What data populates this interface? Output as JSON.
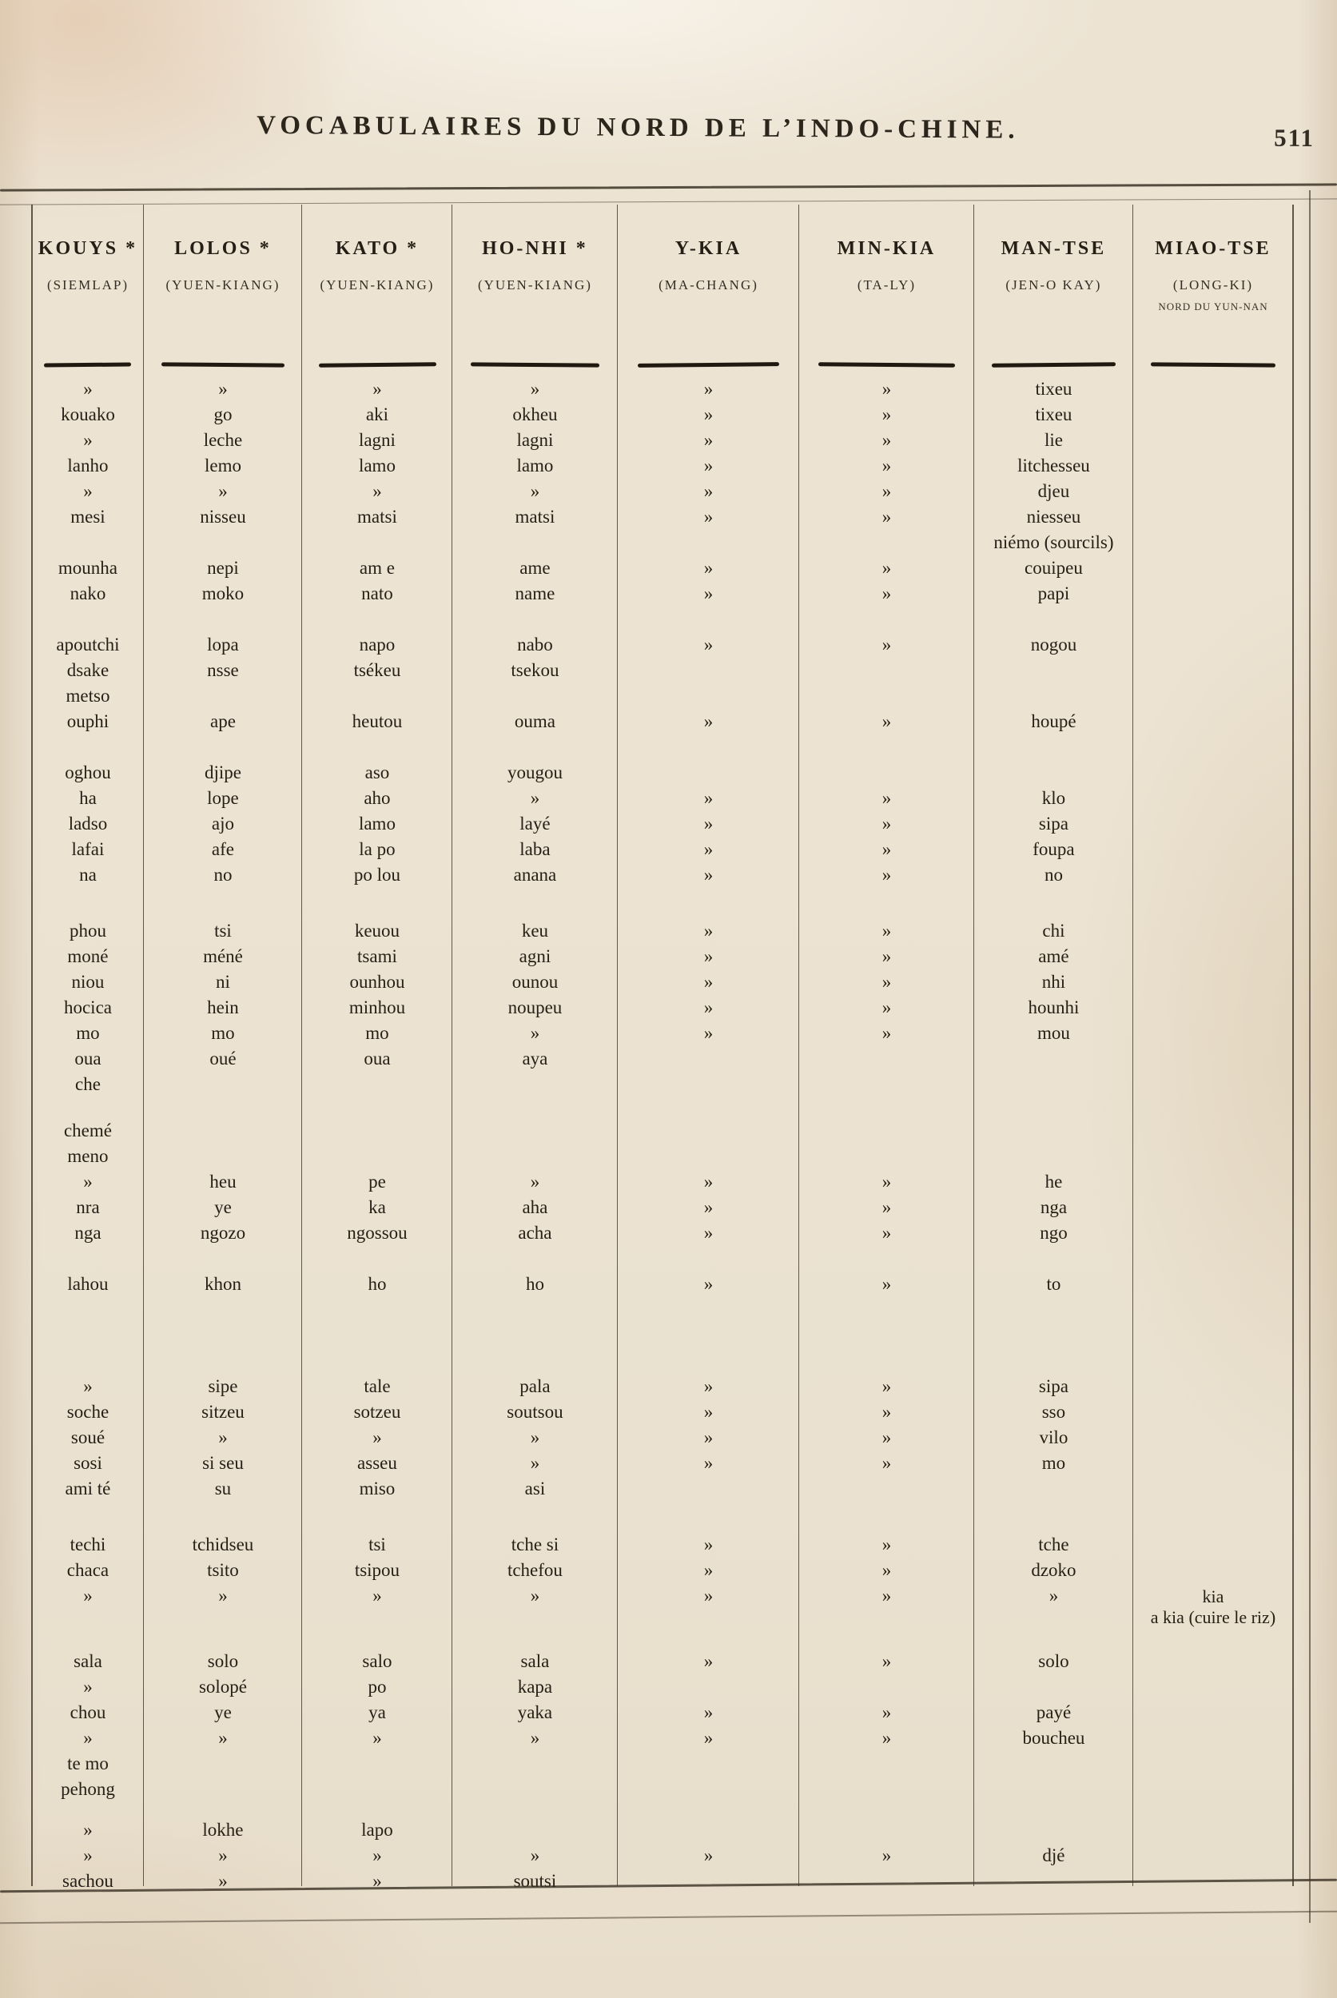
{
  "page": {
    "title": "VOCABULAIRES DU NORD DE L’INDO-CHINE.",
    "page_number": "511"
  },
  "table": {
    "columns": [
      {
        "name": "KOUYS *",
        "location": "(SIEMLAP)",
        "note": ""
      },
      {
        "name": "LOLOS *",
        "location": "(YUEN-KIANG)",
        "note": ""
      },
      {
        "name": "KATO *",
        "location": "(YUEN-KIANG)",
        "note": ""
      },
      {
        "name": "HO-NHI *",
        "location": "(YUEN-KIANG)",
        "note": ""
      },
      {
        "name": "Y-KIA",
        "location": "(MA-CHANG)",
        "note": ""
      },
      {
        "name": "MIN-KIA",
        "location": "(TA-LY)",
        "note": ""
      },
      {
        "name": "MAN-TSE",
        "location": "(JEN-O KAY)",
        "note": ""
      },
      {
        "name": "MIAO-TSE",
        "location": "(LONG-KI)",
        "note": "NORD DU YUN-NAN"
      }
    ],
    "rows": [
      [
        "»",
        "»",
        "»",
        "»",
        "»",
        "»",
        "tixeu",
        ""
      ],
      [
        "kouako",
        "go",
        "aki",
        "okheu",
        "»",
        "»",
        "tixeu",
        ""
      ],
      [
        "»",
        "leche",
        "lagni",
        "lagni",
        "»",
        "»",
        "lie",
        ""
      ],
      [
        "lanho",
        "lemo",
        "lamo",
        "lamo",
        "»",
        "»",
        "litchesseu",
        ""
      ],
      [
        "»",
        "»",
        "»",
        "»",
        "»",
        "»",
        "djeu",
        ""
      ],
      [
        "mesi",
        "nisseu",
        "matsi",
        "matsi",
        "»",
        "»",
        "niesseu",
        ""
      ],
      [
        "",
        "",
        "",
        "",
        "",
        "",
        "niémo (sourcils)",
        ""
      ],
      [
        "mounha",
        "nepi",
        "am e",
        "ame",
        "»",
        "»",
        "couipeu",
        ""
      ],
      [
        "nako",
        "moko",
        "nato",
        "name",
        "»",
        "»",
        "papi",
        ""
      ],
      {
        "gap": 1
      },
      [
        "apoutchi",
        "lopa",
        "napo",
        "nabo",
        "»",
        "»",
        "nogou",
        ""
      ],
      [
        "dsake",
        "nsse",
        "tsékeu",
        "tsekou",
        "",
        "",
        "",
        ""
      ],
      [
        "metso",
        "",
        "",
        "",
        "",
        "",
        "",
        ""
      ],
      [
        "ouphi",
        "ape",
        "heutou",
        "ouma",
        "»",
        "»",
        "houpé",
        ""
      ],
      {
        "gap": 1
      },
      [
        "oghou",
        "djipe",
        "aso",
        "yougou",
        "",
        "",
        "",
        ""
      ],
      [
        "ha",
        "lope",
        "aho",
        "»",
        "»",
        "»",
        "klo",
        ""
      ],
      [
        "ladso",
        "ajo",
        "lamo",
        "layé",
        "»",
        "»",
        "sipa",
        ""
      ],
      [
        "lafai",
        "afe",
        "la po",
        "laba",
        "»",
        "»",
        "foupa",
        ""
      ],
      [
        "na",
        "no",
        "po lou",
        "anana",
        "»",
        "»",
        "no",
        ""
      ],
      {
        "gap": 1.2
      },
      [
        "phou",
        "tsi",
        "keuou",
        "keu",
        "»",
        "»",
        "chi",
        ""
      ],
      [
        "moné",
        "méné",
        "tsami",
        "agni",
        "»",
        "»",
        "amé",
        ""
      ],
      [
        "niou",
        "ni",
        "ounhou",
        "ounou",
        "»",
        "»",
        "nhi",
        ""
      ],
      [
        "hocica",
        "hein",
        "minhou",
        "noupeu",
        "»",
        "»",
        "hounhi",
        ""
      ],
      [
        "mo",
        "mo",
        "mo",
        "»",
        "»",
        "»",
        "mou",
        ""
      ],
      [
        "oua",
        "oué",
        "oua",
        "aya",
        "",
        "",
        "",
        ""
      ],
      [
        "che",
        "",
        "",
        "",
        "",
        "",
        "",
        ""
      ],
      {
        "gap": 0.8
      },
      [
        "chemé",
        "",
        "",
        "",
        "",
        "",
        "",
        ""
      ],
      [
        "meno",
        "",
        "",
        "",
        "",
        "",
        "",
        ""
      ],
      [
        "»",
        "heu",
        "pe",
        "»",
        "»",
        "»",
        "he",
        ""
      ],
      [
        "nra",
        "ye",
        "ka",
        "aha",
        "»",
        "»",
        "nga",
        ""
      ],
      [
        "nga",
        "ngozo",
        "ngossou",
        "acha",
        "»",
        "»",
        "ngo",
        ""
      ],
      {
        "gap": 1
      },
      [
        "lahou",
        "khon",
        "ho",
        "ho",
        "»",
        "»",
        "to",
        ""
      ],
      {
        "gap": 3
      },
      [
        "»",
        "sipe",
        "tale",
        "pala",
        "»",
        "»",
        "sipa",
        ""
      ],
      [
        "soche",
        "sitzeu",
        "sotzeu",
        "soutsou",
        "»",
        "»",
        "sso",
        ""
      ],
      [
        "soué",
        "»",
        "»",
        "»",
        "»",
        "»",
        "vilo",
        ""
      ],
      [
        "sosi",
        "si seu",
        "asseu",
        "»",
        "»",
        "»",
        "mo",
        ""
      ],
      [
        "ami té",
        "su",
        "miso",
        "asi",
        "",
        "",
        "",
        ""
      ],
      {
        "gap": 1.2
      },
      [
        "techi",
        "tchidseu",
        "tsi",
        "tche si",
        "»",
        "»",
        "tche",
        ""
      ],
      [
        "chaca",
        "tsito",
        "tsipou",
        "tchefou",
        "»",
        "»",
        "dzoko",
        ""
      ],
      [
        "»",
        "»",
        "»",
        "»",
        "»",
        "»",
        "»",
        "kia\na kia (cuire le riz)"
      ],
      {
        "gap": 0.8
      },
      [
        "sala",
        "solo",
        "salo",
        "sala",
        "»",
        "»",
        "solo",
        ""
      ],
      [
        "»",
        "solopé",
        "po",
        "kapa",
        "",
        "",
        "",
        ""
      ],
      [
        "chou",
        "ye",
        "ya",
        "yaka",
        "»",
        "»",
        "payé",
        ""
      ],
      [
        "»",
        "»",
        "»",
        "»",
        "»",
        "»",
        "boucheu",
        ""
      ],
      [
        "te mo",
        "",
        "",
        "",
        "",
        "",
        "",
        ""
      ],
      [
        "pehong",
        "",
        "",
        "",
        "",
        "",
        "",
        ""
      ],
      {
        "gap": 0.6
      },
      [
        "»",
        "lokhe",
        "lapo",
        "",
        "",
        "",
        "",
        ""
      ],
      [
        "»",
        "»",
        "»",
        "»",
        "»",
        "»",
        "djé",
        ""
      ],
      [
        "sachou",
        "»",
        "»",
        "soutsi",
        "",
        "",
        "",
        ""
      ]
    ]
  }
}
